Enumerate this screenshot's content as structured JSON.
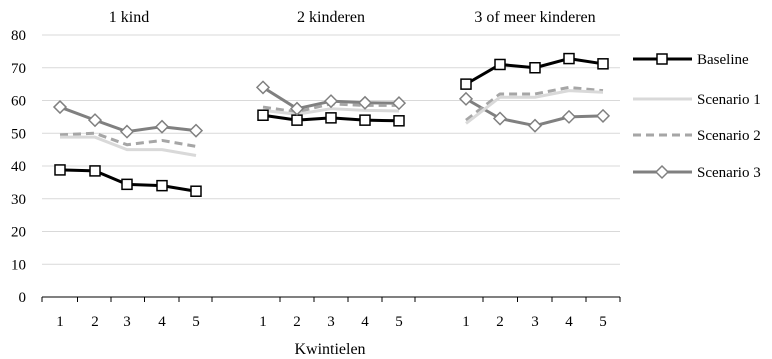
{
  "chart_data": {
    "type": "line",
    "xlabel": "Kwintielen",
    "ylabel": "",
    "ylim": [
      0,
      80
    ],
    "yticks": [
      0,
      10,
      20,
      30,
      40,
      50,
      60,
      70,
      80
    ],
    "grid": true,
    "legend_position": "right",
    "categories": [
      "1",
      "2",
      "3",
      "4",
      "5"
    ],
    "panels": [
      {
        "title": "1 kind",
        "series": [
          {
            "name": "Baseline",
            "values": [
              38.8,
              38.5,
              34.4,
              34.0,
              32.3
            ]
          },
          {
            "name": "Scenario 1",
            "values": [
              48.8,
              48.8,
              45.0,
              45.0,
              43.2
            ]
          },
          {
            "name": "Scenario 2",
            "values": [
              49.5,
              50.0,
              46.5,
              47.8,
              46.0
            ]
          },
          {
            "name": "Scenario 3",
            "values": [
              58.0,
              54.0,
              50.5,
              52.0,
              50.8
            ]
          }
        ]
      },
      {
        "title": "2 kinderen",
        "series": [
          {
            "name": "Baseline",
            "values": [
              55.5,
              54.0,
              54.7,
              54.0,
              53.8
            ]
          },
          {
            "name": "Scenario 1",
            "values": [
              57.0,
              55.8,
              57.5,
              57.0,
              56.8
            ]
          },
          {
            "name": "Scenario 2",
            "values": [
              58.0,
              56.5,
              59.0,
              58.5,
              58.5
            ]
          },
          {
            "name": "Scenario 3",
            "values": [
              64.0,
              57.5,
              59.8,
              59.3,
              59.2
            ]
          }
        ]
      },
      {
        "title": "3 of meer kinderen",
        "series": [
          {
            "name": "Baseline",
            "values": [
              65.0,
              71.0,
              70.0,
              72.8,
              71.2
            ]
          },
          {
            "name": "Scenario 1",
            "values": [
              53.0,
              61.0,
              61.0,
              63.0,
              62.5
            ]
          },
          {
            "name": "Scenario 2",
            "values": [
              54.0,
              62.0,
              62.0,
              64.0,
              63.0
            ]
          },
          {
            "name": "Scenario 3",
            "values": [
              60.5,
              54.5,
              52.3,
              55.0,
              55.3
            ]
          }
        ]
      }
    ],
    "series_styles": [
      {
        "name": "Baseline",
        "color": "#000000",
        "width": 3,
        "dash": "",
        "marker": "square"
      },
      {
        "name": "Scenario 1",
        "color": "#d9d9d9",
        "width": 3,
        "dash": "",
        "marker": "none"
      },
      {
        "name": "Scenario 2",
        "color": "#a6a6a6",
        "width": 3,
        "dash": "8,5",
        "marker": "none"
      },
      {
        "name": "Scenario 3",
        "color": "#808080",
        "width": 3,
        "dash": "",
        "marker": "diamond"
      }
    ],
    "colors": {
      "grid": "#d9d9d9",
      "axis": "#000000"
    }
  }
}
